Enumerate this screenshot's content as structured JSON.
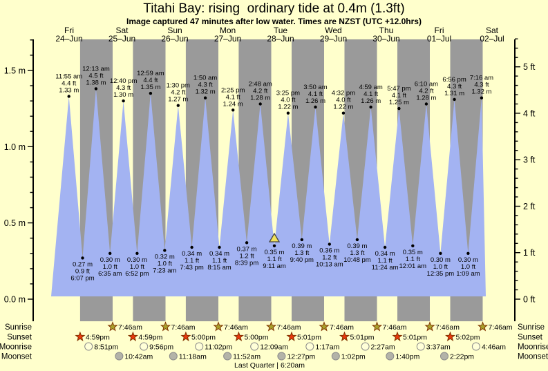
{
  "title": "Titahi Bay: rising  ordinary tide at 0.4m (1.3ft)",
  "subtitle": "Image captured 47 minutes after low water. Times are NZST (UTC +12.0hrs)",
  "colors": {
    "background": "#ffffcc",
    "night_band": "#9a9a9a",
    "tide_fill": "#a3b3f2",
    "day_label": "#f0493c",
    "axis": "#000000",
    "annotation_text": "#111111",
    "sunrise_star_fill": "#a8a12c",
    "sunset_star_fill": "#e8380d",
    "star_stroke": "#803300",
    "moonrise_fill": "#ffffd8",
    "moonset_fill": "#b3b3a8",
    "circle_stroke": "#8a8a8a",
    "marker_fill": "#f2e35c",
    "marker_stroke": "#444444"
  },
  "chart_data": {
    "type": "area",
    "title": "Titahi Bay: rising  ordinary tide at 0.4m (1.3ft)",
    "subtitle": "Image captured 47 minutes after low water. Times are NZST (UTC +12.0hrs)",
    "y_axis_left": {
      "unit": "m",
      "range": [
        0,
        1.7
      ],
      "minor_step": 0.1,
      "major_step": 0.5,
      "tick_labels": [
        "0.0 m",
        "0.5 m",
        "1.0 m",
        "1.5 m"
      ]
    },
    "y_axis_right": {
      "unit": "ft",
      "range": [
        0,
        5.6
      ],
      "minor_step": 0.2,
      "major_step": 1,
      "tick_labels": [
        "0 ft",
        "1 ft",
        "2 ft",
        "3 ft",
        "4 ft",
        "5 ft"
      ]
    },
    "days": [
      {
        "day": "Fri",
        "date": "24–Jun"
      },
      {
        "day": "Sat",
        "date": "25–Jun"
      },
      {
        "day": "Sun",
        "date": "26–Jun"
      },
      {
        "day": "Mon",
        "date": "27–Jun"
      },
      {
        "day": "Tue",
        "date": "28–Jun"
      },
      {
        "day": "Wed",
        "date": "29–Jun"
      },
      {
        "day": "Thu",
        "date": "30–Jun"
      },
      {
        "day": "Fri",
        "date": "01–Jul"
      },
      {
        "day": "Sat",
        "date": "02–Jul"
      }
    ],
    "tides": [
      {
        "kind": "high",
        "time": "11:55 am",
        "ft": 4.4,
        "m": 1.33,
        "t": 11.917
      },
      {
        "kind": "low",
        "time": "6:07 pm",
        "ft": 0.9,
        "m": 0.27,
        "t": 18.117
      },
      {
        "kind": "high",
        "time": "12:13 am",
        "ft": 4.5,
        "m": 1.38,
        "t": 24.217
      },
      {
        "kind": "low",
        "time": "6:35 am",
        "ft": 1.0,
        "m": 0.3,
        "t": 30.583
      },
      {
        "kind": "high",
        "time": "12:40 pm",
        "ft": 4.3,
        "m": 1.3,
        "t": 36.667
      },
      {
        "kind": "low",
        "time": "6:52 pm",
        "ft": 1.0,
        "m": 0.3,
        "t": 42.867
      },
      {
        "kind": "high",
        "time": "12:59 am",
        "ft": 4.4,
        "m": 1.35,
        "t": 48.983
      },
      {
        "kind": "low",
        "time": "7:23 am",
        "ft": 1.0,
        "m": 0.32,
        "t": 55.383
      },
      {
        "kind": "high",
        "time": "1:30 pm",
        "ft": 4.2,
        "m": 1.27,
        "t": 61.5
      },
      {
        "kind": "low",
        "time": "7:43 pm",
        "ft": 1.1,
        "m": 0.34,
        "t": 67.717
      },
      {
        "kind": "high",
        "time": "1:50 am",
        "ft": 4.3,
        "m": 1.32,
        "t": 73.833
      },
      {
        "kind": "low",
        "time": "8:15 am",
        "ft": 1.1,
        "m": 0.34,
        "t": 80.25
      },
      {
        "kind": "high",
        "time": "2:25 pm",
        "ft": 4.1,
        "m": 1.24,
        "t": 86.417
      },
      {
        "kind": "low",
        "time": "8:39 pm",
        "ft": 1.2,
        "m": 0.37,
        "t": 92.65
      },
      {
        "kind": "high",
        "time": "2:48 am",
        "ft": 4.2,
        "m": 1.28,
        "t": 98.8
      },
      {
        "kind": "low",
        "time": "9:11 am",
        "ft": 1.1,
        "m": 0.35,
        "t": 105.183
      },
      {
        "kind": "high",
        "time": "3:25 pm",
        "ft": 4.0,
        "m": 1.22,
        "t": 111.417
      },
      {
        "kind": "low",
        "time": "9:40 pm",
        "ft": 1.3,
        "m": 0.39,
        "t": 117.667
      },
      {
        "kind": "high",
        "time": "3:50 am",
        "ft": 4.1,
        "m": 1.26,
        "t": 123.833
      },
      {
        "kind": "low",
        "time": "10:13 am",
        "ft": 1.2,
        "m": 0.36,
        "t": 130.217
      },
      {
        "kind": "high",
        "time": "4:32 pm",
        "ft": 4.0,
        "m": 1.22,
        "t": 136.533
      },
      {
        "kind": "low",
        "time": "10:48 pm",
        "ft": 1.3,
        "m": 0.39,
        "t": 142.8
      },
      {
        "kind": "high",
        "time": "4:59 am",
        "ft": 4.1,
        "m": 1.26,
        "t": 148.983
      },
      {
        "kind": "low",
        "time": "11:24 am",
        "ft": 1.1,
        "m": 0.34,
        "t": 155.4
      },
      {
        "kind": "high",
        "time": "5:47 pm",
        "ft": 4.1,
        "m": 1.25,
        "t": 161.783
      },
      {
        "kind": "low",
        "time": "12:01 am",
        "ft": 1.1,
        "m": 0.35,
        "t": 168.017
      },
      {
        "kind": "high",
        "time": "6:10 am",
        "ft": 4.2,
        "m": 1.28,
        "t": 174.167
      },
      {
        "kind": "low",
        "time": "12:35 pm",
        "ft": 1.0,
        "m": 0.3,
        "t": 180.583
      },
      {
        "kind": "high",
        "time": "6:56 pm",
        "ft": 4.3,
        "m": 1.31,
        "t": 186.933
      },
      {
        "kind": "low",
        "time": "1:09 am",
        "ft": 1.0,
        "m": 0.3,
        "t": 193.15
      },
      {
        "kind": "high",
        "time": "7:16 am",
        "ft": 4.3,
        "m": 1.32,
        "t": 199.267
      }
    ],
    "current_marker": {
      "tide_index": 15
    },
    "astro": {
      "sunrise": {
        "label": "Sunrise",
        "items": [
          {
            "t": 31.767,
            "time": "7:46am"
          },
          {
            "t": 55.767,
            "time": "7:46am"
          },
          {
            "t": 79.767,
            "time": "7:46am"
          },
          {
            "t": 103.767,
            "time": "7:46am"
          },
          {
            "t": 127.767,
            "time": "7:46am"
          },
          {
            "t": 151.767,
            "time": "7:46am"
          },
          {
            "t": 175.767,
            "time": "7:46am"
          },
          {
            "t": 199.767,
            "time": "7:46am"
          }
        ]
      },
      "sunset": {
        "label": "Sunset",
        "items": [
          {
            "t": 16.983,
            "time": "4:59pm"
          },
          {
            "t": 40.983,
            "time": "4:59pm"
          },
          {
            "t": 65.0,
            "time": "5:00pm"
          },
          {
            "t": 89.0,
            "time": "5:00pm"
          },
          {
            "t": 113.017,
            "time": "5:01pm"
          },
          {
            "t": 137.017,
            "time": "5:01pm"
          },
          {
            "t": 161.017,
            "time": "5:01pm"
          },
          {
            "t": 185.033,
            "time": "5:02pm"
          }
        ]
      },
      "moonrise": {
        "label": "Moonrise",
        "items": [
          {
            "t": 20.85,
            "time": "8:51pm"
          },
          {
            "t": 45.933,
            "time": "9:56pm"
          },
          {
            "t": 71.033,
            "time": "11:02pm"
          },
          {
            "t": 96.15,
            "time": "12:09am"
          },
          {
            "t": 121.283,
            "time": "1:17am"
          },
          {
            "t": 146.45,
            "time": "2:27am"
          },
          {
            "t": 171.617,
            "time": "3:37am"
          },
          {
            "t": 196.767,
            "time": "4:46am"
          }
        ]
      },
      "moonset": {
        "label": "Moonset",
        "items": [
          {
            "t": 34.7,
            "time": "10:42am"
          },
          {
            "t": 59.3,
            "time": "11:18am"
          },
          {
            "t": 83.867,
            "time": "11:52am"
          },
          {
            "t": 108.45,
            "time": "12:27pm"
          },
          {
            "t": 133.033,
            "time": "1:02pm"
          },
          {
            "t": 157.667,
            "time": "1:40pm"
          },
          {
            "t": 182.367,
            "time": "2:22pm"
          }
        ]
      }
    },
    "moon_phase": "Last Quarter | 6:20am"
  }
}
